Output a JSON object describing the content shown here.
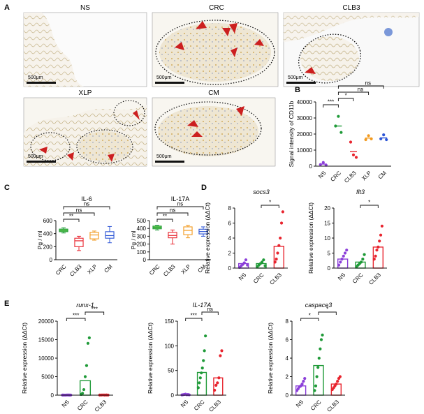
{
  "colors": {
    "ns": "#8b3fd9",
    "crc": "#1f9a38",
    "clb3": "#e8242e",
    "xlp": "#f29a1f",
    "cm": "#2c55d6",
    "box_crc_fill": "#7bdc4c",
    "scalebar": "#111111",
    "arrow": "#cc1f1f"
  },
  "panel_labels": {
    "a": "A",
    "b": "B",
    "c": "C",
    "d": "D",
    "e": "E"
  },
  "panelA": {
    "images": [
      {
        "key": "ns",
        "title": "NS",
        "scale": ""
      },
      {
        "key": "crc",
        "title": "CRC",
        "scale": "500μm"
      },
      {
        "key": "clb3",
        "title": "CLB3",
        "scale": "500μm"
      },
      {
        "key": "xlp",
        "title": "XLP",
        "scale": "500μm"
      },
      {
        "key": "cm",
        "title": "CM",
        "scale": "500μm"
      }
    ],
    "ns_scale": "500μm",
    "icons": {
      "arrowhead": "red-arrowhead-icon",
      "tissue_outline": "dotted-outline"
    }
  },
  "sig": {
    "three": "***",
    "two": "**",
    "one": "*",
    "ns": "ns"
  },
  "chart_data": [
    {
      "id": "B",
      "type": "scatter",
      "title": "",
      "ylabel": "Signal intensity of CD11b",
      "categories": [
        "NS",
        "CRC",
        "CLB3",
        "XLP",
        "CM"
      ],
      "ylim": [
        0,
        40000
      ],
      "yticks": [
        0,
        10000,
        20000,
        30000,
        40000
      ],
      "points": [
        [
          1000,
          2300,
          600
        ],
        [
          25000,
          31000,
          21000
        ],
        [
          15000,
          7000,
          5500
        ],
        [
          16500,
          19000,
          17000
        ],
        [
          17000,
          19500,
          16500
        ]
      ],
      "means": [
        1300,
        25000,
        9000,
        17500,
        17600
      ],
      "comparisons": [
        {
          "from": "NS",
          "to": "CRC",
          "label": "***"
        },
        {
          "from": "CRC",
          "to": "CLB3",
          "label": "*"
        },
        {
          "from": "CRC",
          "to": "XLP",
          "label": "ns"
        },
        {
          "from": "CRC",
          "to": "CM",
          "label": "ns"
        }
      ]
    },
    {
      "id": "C1",
      "type": "box",
      "title": "IL-6",
      "ylabel": "Pg / ml",
      "categories": [
        "CRC",
        "CLB3",
        "XLP",
        "CM"
      ],
      "ylim": [
        0,
        600
      ],
      "yticks": [
        0,
        200,
        400,
        600
      ],
      "boxes": [
        {
          "min": 410,
          "q1": 430,
          "median": 450,
          "q3": 470,
          "max": 490
        },
        {
          "min": 140,
          "q1": 200,
          "median": 290,
          "q3": 330,
          "max": 360
        },
        {
          "min": 300,
          "q1": 320,
          "median": 380,
          "q3": 420,
          "max": 440
        },
        {
          "min": 260,
          "q1": 330,
          "median": 370,
          "q3": 430,
          "max": 510
        }
      ],
      "comparisons": [
        {
          "from": "CRC",
          "to": "CLB3",
          "label": "**"
        },
        {
          "from": "CRC",
          "to": "XLP",
          "label": "ns"
        },
        {
          "from": "CRC",
          "to": "CM",
          "label": "ns"
        }
      ]
    },
    {
      "id": "C2",
      "type": "box",
      "title": "IL-17A",
      "ylabel": "Pg / ml",
      "categories": [
        "CRC",
        "CLB3",
        "XLP",
        "CM"
      ],
      "ylim": [
        0,
        500
      ],
      "yticks": [
        0,
        100,
        200,
        300,
        400,
        500
      ],
      "boxes": [
        {
          "min": 380,
          "q1": 395,
          "median": 415,
          "q3": 430,
          "max": 440
        },
        {
          "min": 200,
          "q1": 280,
          "median": 310,
          "q3": 350,
          "max": 380
        },
        {
          "min": 280,
          "q1": 320,
          "median": 375,
          "q3": 420,
          "max": 440
        },
        {
          "min": 300,
          "q1": 330,
          "median": 360,
          "q3": 390,
          "max": 420
        }
      ],
      "comparisons": [
        {
          "from": "CRC",
          "to": "CLB3",
          "label": "**"
        },
        {
          "from": "CRC",
          "to": "XLP",
          "label": "ns"
        },
        {
          "from": "CRC",
          "to": "CM",
          "label": "ns"
        }
      ]
    },
    {
      "id": "D1",
      "type": "bar",
      "title": "socs3",
      "ylabel": "Relative expression (ΔΔCt)",
      "categories": [
        "NS",
        "CRC",
        "CLB3"
      ],
      "ylim": [
        0,
        8
      ],
      "yticks": [
        0,
        2,
        4,
        6,
        8
      ],
      "values": [
        0.6,
        0.6,
        2.9
      ],
      "points": [
        [
          0.1,
          0.3,
          0.5,
          0.7,
          1.1,
          0.4
        ],
        [
          0.2,
          0.4,
          0.6,
          0.8,
          1.1,
          0.3
        ],
        [
          0.8,
          1.2,
          2.0,
          3.0,
          4.0,
          6.0,
          7.5
        ]
      ],
      "comparisons": [
        {
          "from": "CRC",
          "to": "CLB3",
          "label": "*"
        }
      ]
    },
    {
      "id": "D2",
      "type": "bar",
      "title": "flt3",
      "ylabel": "Relative expression (ΔΔCt)",
      "categories": [
        "NS",
        "CRC",
        "CLB3"
      ],
      "ylim": [
        0,
        20
      ],
      "yticks": [
        0,
        5,
        10,
        15,
        20
      ],
      "values": [
        3.0,
        2.0,
        7.0
      ],
      "points": [
        [
          1.0,
          2.0,
          3.0,
          4.0,
          5.0,
          6.0
        ],
        [
          0.5,
          1.0,
          1.5,
          2.0,
          3.0,
          4.5
        ],
        [
          3.0,
          4.0,
          6.0,
          7.0,
          9.0,
          11.0,
          14.0
        ]
      ],
      "comparisons": [
        {
          "from": "CRC",
          "to": "CLB3",
          "label": "*"
        }
      ]
    },
    {
      "id": "E1",
      "type": "bar",
      "title": "runx-1",
      "ylabel": "Relative expression (ΔΔCt)",
      "categories": [
        "NS",
        "CRC",
        "CLB3"
      ],
      "ylim": [
        0,
        20000
      ],
      "yticks": [
        0,
        5000,
        10000,
        15000,
        20000
      ],
      "values": [
        30,
        3900,
        40
      ],
      "points": [
        [
          20,
          30,
          10,
          40,
          50,
          20,
          30
        ],
        [
          200,
          500,
          1500,
          5000,
          8000,
          14000,
          15500
        ],
        [
          20,
          40,
          60,
          30,
          50,
          20
        ]
      ],
      "comparisons": [
        {
          "from": "NS",
          "to": "CRC",
          "label": "***"
        },
        {
          "from": "CRC",
          "to": "CLB3",
          "label": "***"
        }
      ]
    },
    {
      "id": "E2",
      "type": "bar",
      "title": "IL-17A",
      "ylabel": "Relative expression (ΔΔCt)",
      "categories": [
        "NS",
        "CRC",
        "CLB3"
      ],
      "ylim": [
        0,
        150
      ],
      "yticks": [
        0,
        50,
        100,
        150
      ],
      "values": [
        1,
        46,
        35
      ],
      "points": [
        [
          0.5,
          1,
          1.5,
          2,
          0.8,
          1.2,
          0.6
        ],
        [
          15,
          25,
          35,
          45,
          55,
          70,
          90,
          120
        ],
        [
          10,
          20,
          25,
          35,
          80,
          90
        ]
      ],
      "comparisons": [
        {
          "from": "NS",
          "to": "CRC",
          "label": "***"
        },
        {
          "from": "CRC",
          "to": "CLB3",
          "label": "ns"
        }
      ]
    },
    {
      "id": "E3",
      "type": "bar",
      "title": "caspace3",
      "ylabel": "Relative expression (ΔΔCt)",
      "categories": [
        "NS",
        "CRC",
        "CLB3"
      ],
      "ylim": [
        0,
        8
      ],
      "yticks": [
        0,
        2,
        4,
        6,
        8
      ],
      "values": [
        1.0,
        3.2,
        1.2
      ],
      "points": [
        [
          0.5,
          0.7,
          0.9,
          1.0,
          1.2,
          1.5,
          1.8
        ],
        [
          0.5,
          1.0,
          2.0,
          3.0,
          4.0,
          5.0,
          6.0,
          6.5
        ],
        [
          0.6,
          0.8,
          1.0,
          1.2,
          1.5,
          1.8,
          2.0
        ]
      ],
      "comparisons": [
        {
          "from": "NS",
          "to": "CRC",
          "label": "*"
        },
        {
          "from": "CRC",
          "to": "CLB3",
          "label": "*"
        }
      ]
    }
  ]
}
